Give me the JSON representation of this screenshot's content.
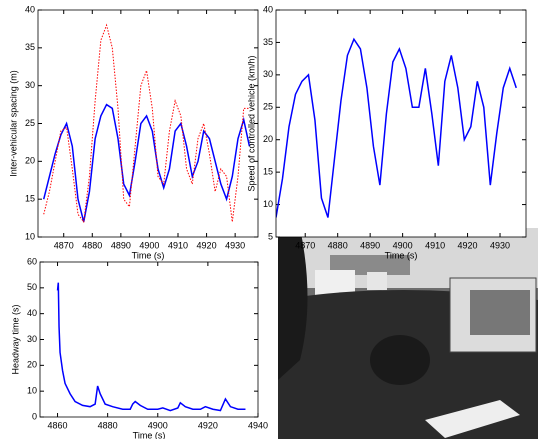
{
  "chart_data": [
    {
      "type": "line",
      "x_label": "Time (s)",
      "y_label": "Inter-vehicular spacing (m)",
      "x": [
        4863,
        4865,
        4867,
        4869,
        4871,
        4873,
        4875,
        4877,
        4879,
        4881,
        4883,
        4885,
        4887,
        4889,
        4891,
        4893,
        4895,
        4897,
        4899,
        4901,
        4903,
        4905,
        4907,
        4909,
        4911,
        4913,
        4915,
        4917,
        4919,
        4921,
        4923,
        4925,
        4927,
        4929,
        4931,
        4933,
        4935
      ],
      "series": [
        {
          "color": "#0000ff",
          "dash": "solid",
          "values": [
            15,
            18,
            21,
            23.5,
            25,
            22,
            15,
            12,
            16,
            23,
            26,
            27.5,
            27,
            23,
            17,
            15.5,
            20,
            25,
            26,
            24,
            19,
            16.5,
            19,
            24,
            25,
            22,
            18,
            20,
            24,
            23,
            20,
            17,
            15,
            18,
            23,
            25.5,
            22
          ]
        },
        {
          "color": "#ff0000",
          "dash": "dotted",
          "values": [
            13,
            16,
            20,
            24,
            24.5,
            19,
            13,
            12,
            18,
            28,
            36,
            38,
            35,
            27,
            15,
            14,
            22,
            30,
            32,
            27,
            18,
            17,
            24,
            28,
            26,
            19,
            17,
            23,
            25,
            21,
            16,
            19,
            18,
            12,
            18,
            27,
            27
          ]
        }
      ],
      "xlim": [
        4861,
        4938
      ],
      "xticks": [
        4870,
        4880,
        4890,
        4900,
        4910,
        4920,
        4930
      ],
      "ylim": [
        10,
        40
      ],
      "yticks": [
        10,
        15,
        20,
        25,
        30,
        35,
        40
      ]
    },
    {
      "type": "line",
      "x_label": "Time (s)",
      "y_label": "Speed of controlled vehicle (km/h)",
      "x": [
        4861,
        4863,
        4865,
        4867,
        4869,
        4871,
        4873,
        4875,
        4877,
        4879,
        4881,
        4883,
        4885,
        4887,
        4889,
        4891,
        4893,
        4895,
        4897,
        4899,
        4901,
        4903,
        4905,
        4907,
        4909,
        4911,
        4913,
        4915,
        4917,
        4919,
        4921,
        4923,
        4925,
        4927,
        4929,
        4931,
        4933,
        4935
      ],
      "series": [
        {
          "color": "#0000ff",
          "dash": "solid",
          "values": [
            8,
            14,
            22,
            27,
            29,
            30,
            23,
            11,
            8,
            17,
            26,
            33,
            35.5,
            34,
            28,
            19,
            13,
            24,
            32,
            34,
            31,
            25,
            25,
            31,
            24,
            16,
            29,
            33,
            28,
            20,
            22,
            29,
            25,
            13,
            21,
            28,
            31,
            28
          ]
        }
      ],
      "xlim": [
        4861,
        4938
      ],
      "xticks": [
        4870,
        4880,
        4890,
        4900,
        4910,
        4920,
        4930
      ],
      "ylim": [
        5,
        40
      ],
      "yticks": [
        5,
        10,
        15,
        20,
        25,
        30,
        35,
        40
      ]
    },
    {
      "type": "line",
      "x_label": "Time (s)",
      "y_label": "Headway time (s)",
      "x": [
        4860,
        4860.3,
        4860.6,
        4861,
        4862,
        4863,
        4865,
        4867,
        4870,
        4873,
        4875,
        4876,
        4877,
        4879,
        4882,
        4886,
        4889,
        4890,
        4891,
        4893,
        4896,
        4900,
        4902,
        4905,
        4908,
        4909,
        4911,
        4914,
        4917,
        4919,
        4922,
        4925,
        4927,
        4929,
        4932,
        4935
      ],
      "series": [
        {
          "color": "#0000ff",
          "dash": "solid",
          "values": [
            49,
            52,
            35,
            25,
            18,
            13,
            9,
            6,
            4.5,
            4,
            5,
            12,
            9,
            5,
            4,
            3,
            3,
            5,
            6,
            4.5,
            3,
            3,
            3.5,
            2.5,
            3.5,
            5.5,
            4,
            3,
            3,
            4,
            3,
            2.5,
            7,
            4,
            3,
            3
          ]
        }
      ],
      "xlim": [
        4853,
        4940
      ],
      "xticks": [
        4860,
        4880,
        4900,
        4920,
        4940
      ],
      "ylim": [
        0,
        60
      ],
      "yticks": [
        0,
        10,
        20,
        30,
        40,
        50,
        60
      ]
    }
  ]
}
